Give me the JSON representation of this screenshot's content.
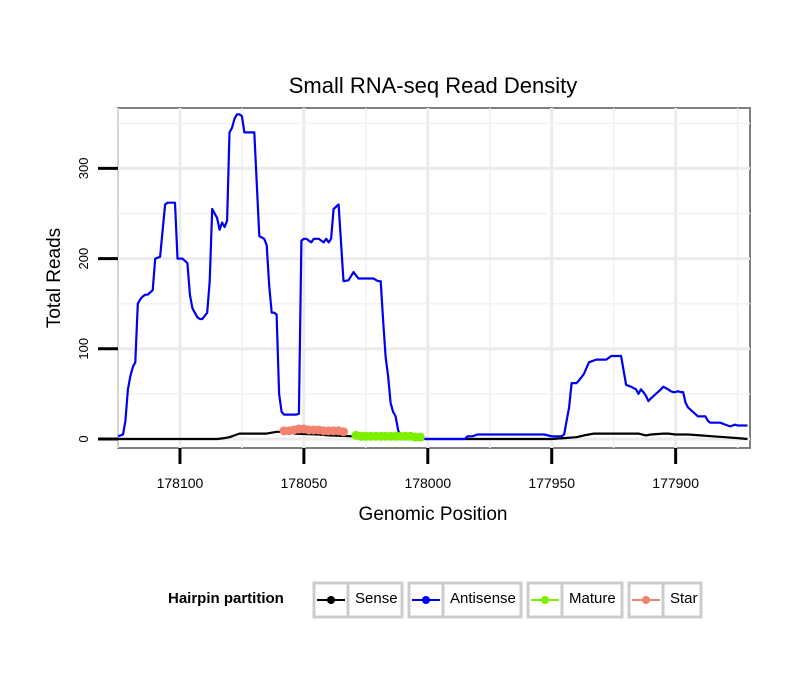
{
  "chart_data": {
    "type": "line",
    "title": "Small RNA-seq Read Density",
    "xlabel": "Genomic Position",
    "ylabel": "Total Reads",
    "x_reversed": true,
    "xlim": [
      178125,
      177870
    ],
    "ylim": [
      -10,
      367
    ],
    "xticks": [
      178100,
      178050,
      178000,
      177950,
      177900
    ],
    "xtick_labels": [
      "178100",
      "178050",
      "178000",
      "177950",
      "177900"
    ],
    "yticks": [
      0,
      100,
      200,
      300
    ],
    "ytick_labels": [
      "0",
      "100",
      "200",
      "300"
    ],
    "grid": true,
    "legend": {
      "title": "Hairpin partition",
      "position": "bottom",
      "entries": [
        "Sense",
        "Antisense",
        "Mature",
        "Star"
      ]
    },
    "series": [
      {
        "name": "Sense",
        "color": "#000000",
        "style": "line",
        "x": [
          178125,
          178110,
          178100,
          178085,
          178082,
          178080,
          178076,
          178074,
          178065,
          178061,
          178059,
          178055,
          178054,
          178044,
          178040,
          178030,
          178020,
          178010,
          178000,
          177990,
          177980,
          177960,
          177950,
          177945,
          177940,
          177937,
          177935,
          177933,
          177925,
          177915,
          177912,
          177910,
          177905,
          177903,
          177900,
          177895,
          177890,
          177885,
          177880,
          177875,
          177871
        ],
        "y": [
          0,
          0,
          0,
          0,
          1,
          2,
          6,
          6,
          6,
          8,
          8,
          8,
          6,
          5,
          4,
          3,
          2,
          1,
          0,
          0,
          0,
          0,
          0,
          1,
          2,
          4,
          5,
          6,
          6,
          6,
          4,
          5,
          6,
          6,
          5,
          5,
          4,
          3,
          2,
          1,
          0
        ]
      },
      {
        "name": "Antisense",
        "color": "#0000f0",
        "style": "line",
        "x": [
          178125,
          178123,
          178122,
          178121,
          178120,
          178119,
          178118,
          178117,
          178116,
          178115,
          178114,
          178113,
          178111,
          178110,
          178108,
          178106,
          178105,
          178103,
          178102,
          178101,
          178099,
          178097,
          178096,
          178095,
          178093,
          178092,
          178091,
          178089,
          178088,
          178087,
          178085,
          178084,
          178083,
          178082,
          178081,
          178080,
          178079,
          178078,
          178077,
          178076,
          178075,
          178074,
          178073,
          178071,
          178070,
          178068,
          178066,
          178065,
          178064,
          178063,
          178062,
          178061,
          178060,
          178059,
          178058,
          178057,
          178056,
          178055,
          178054,
          178053,
          178052,
          178051,
          178050,
          178049,
          178048,
          178047,
          178046,
          178045,
          178044,
          178043,
          178042,
          178041,
          178040,
          178039,
          178038,
          178036,
          178034,
          178032,
          178030,
          178028,
          178026,
          178024,
          178022,
          178020,
          178019,
          178018,
          178017,
          178016,
          178015,
          178014,
          178013,
          178012,
          178011,
          178010,
          178009,
          178008,
          178006,
          178004,
          178002,
          178000,
          177998,
          177996,
          177995,
          177994,
          177993,
          177992,
          177991,
          177990,
          177989,
          177988,
          177987,
          177986,
          177985,
          177984,
          177983,
          177982,
          177980,
          177975,
          177970,
          177965,
          177960,
          177955,
          177953,
          177950,
          177948,
          177946,
          177945,
          177944,
          177943,
          177942,
          177941,
          177940,
          177939,
          177937,
          177935,
          177932,
          177930,
          177928,
          177926,
          177924,
          177922,
          177920,
          177918,
          177916,
          177915,
          177914,
          177913,
          177912,
          177911,
          177910,
          177908,
          177906,
          177905,
          177903,
          177902,
          177901,
          177900,
          177899,
          177898,
          177897,
          177896,
          177895,
          177893,
          177891,
          177889,
          177888,
          177887,
          177886,
          177884,
          177882,
          177880,
          177878,
          177876,
          177875,
          177873,
          177871
        ],
        "y": [
          3,
          5,
          20,
          55,
          70,
          80,
          85,
          150,
          155,
          158,
          160,
          160,
          165,
          200,
          202,
          260,
          262,
          262,
          262,
          200,
          200,
          195,
          160,
          145,
          135,
          133,
          133,
          140,
          175,
          255,
          245,
          232,
          240,
          235,
          242,
          340,
          345,
          355,
          360,
          360,
          358,
          340,
          340,
          340,
          340,
          225,
          222,
          215,
          170,
          140,
          140,
          138,
          50,
          30,
          27,
          27,
          27,
          27,
          27,
          27,
          28,
          220,
          222,
          222,
          220,
          218,
          222,
          222,
          222,
          220,
          218,
          222,
          218,
          222,
          255,
          260,
          175,
          176,
          185,
          178,
          178,
          178,
          178,
          175,
          175,
          130,
          90,
          70,
          40,
          30,
          25,
          10,
          3,
          0,
          0,
          0,
          0,
          0,
          0,
          0,
          0,
          0,
          0,
          0,
          0,
          0,
          0,
          0,
          0,
          0,
          0,
          0,
          0,
          3,
          3,
          3,
          5,
          5,
          5,
          5,
          5,
          5,
          5,
          3,
          3,
          3,
          5,
          20,
          35,
          62,
          62,
          62,
          65,
          72,
          85,
          88,
          88,
          88,
          92,
          92,
          92,
          60,
          58,
          55,
          50,
          55,
          52,
          48,
          42,
          45,
          50,
          55,
          58,
          55,
          53,
          52,
          52,
          53,
          52,
          52,
          40,
          35,
          30,
          25,
          25,
          25,
          20,
          18,
          18,
          18,
          16,
          14,
          16,
          15,
          15,
          15
        ],
        "y_override": null
      },
      {
        "name": "Mature",
        "color": "#7cf000",
        "style": "points",
        "x": [
          178029,
          178027,
          178025,
          178023,
          178021,
          178019,
          178017,
          178015,
          178013,
          178011,
          178009,
          178007,
          178005,
          178003
        ],
        "y": [
          4,
          3,
          3,
          3,
          3,
          3,
          3,
          3,
          3,
          3,
          3,
          3,
          2,
          2
        ]
      },
      {
        "name": "Star",
        "color": "#f0826e",
        "style": "points",
        "x": [
          178058,
          178056,
          178054,
          178052,
          178050,
          178048,
          178046,
          178044,
          178042,
          178040,
          178038,
          178036,
          178034
        ],
        "y": [
          9,
          9,
          10,
          11,
          11,
          10,
          10,
          10,
          9,
          9,
          9,
          9,
          8
        ]
      }
    ]
  }
}
